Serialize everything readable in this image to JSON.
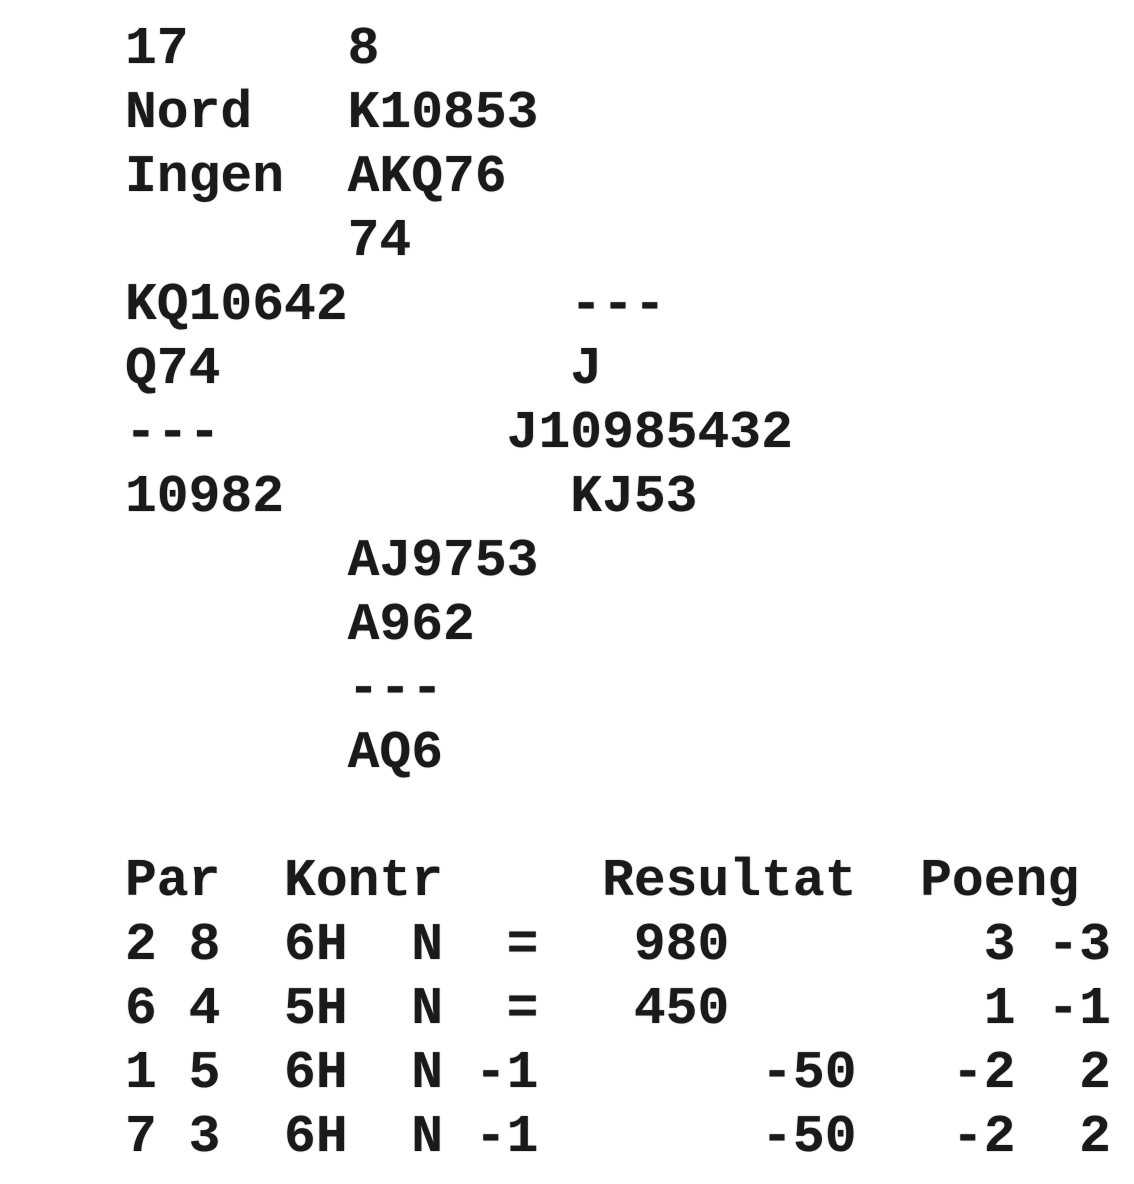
{
  "board": {
    "number": "17",
    "dealer": "Nord",
    "vulnerability": "Ingen"
  },
  "hands": {
    "north": {
      "spades": "8",
      "hearts": "K10853",
      "diamonds": "AKQ76",
      "clubs": "74"
    },
    "west": {
      "spades": "KQ10642",
      "hearts": "Q74",
      "diamonds": "---",
      "clubs": "10982"
    },
    "east": {
      "spades": "---",
      "hearts": "J",
      "diamonds": "J10985432",
      "clubs": "KJ53"
    },
    "south": {
      "spades": "AJ9753",
      "hearts": "A962",
      "diamonds": "---",
      "clubs": "AQ6"
    }
  },
  "results": {
    "headers": {
      "par": "Par",
      "kontr": "Kontr",
      "resultat": "Resultat",
      "poeng": "Poeng"
    },
    "rows": [
      {
        "pair": "2 8",
        "contract": "6H",
        "declarer": "N",
        "result": "=",
        "score": "980",
        "poeng1": "3",
        "poeng2": "-3"
      },
      {
        "pair": "6 4",
        "contract": "5H",
        "declarer": "N",
        "result": "=",
        "score": "450",
        "poeng1": "1",
        "poeng2": "-1"
      },
      {
        "pair": "1 5",
        "contract": "6H",
        "declarer": "N",
        "result": "-1",
        "score": "-50",
        "poeng1": "-2",
        "poeng2": "2"
      },
      {
        "pair": "7 3",
        "contract": "6H",
        "declarer": "N",
        "result": "-1",
        "score": "-50",
        "poeng1": "-2",
        "poeng2": "2"
      }
    ]
  },
  "colors": {
    "text": "#1a1a1a",
    "background": "#ffffff"
  }
}
